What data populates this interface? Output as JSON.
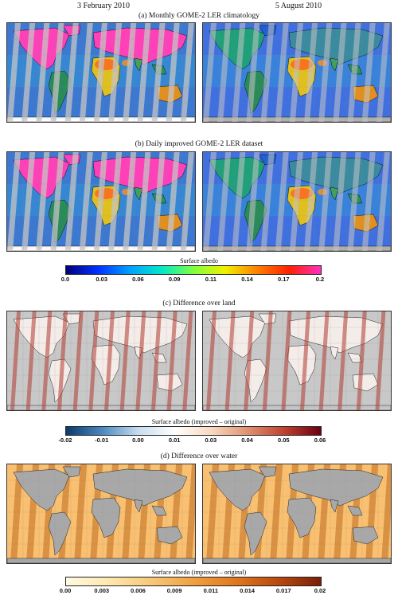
{
  "columns": {
    "left": "3 February 2010",
    "right": "5 August 2010"
  },
  "sections": {
    "a": "(a) Monthly GOME-2 LER climatology",
    "b": "(b) Daily improved GOME-2 LER dataset",
    "c": "(c) Difference over land",
    "d": "(d) Difference over water"
  },
  "colorbars": {
    "albedo": {
      "label": "Surface albedo",
      "ticks": [
        "0.0",
        "0.03",
        "0.06",
        "0.09",
        "0.11",
        "0.14",
        "0.17",
        "0.2"
      ],
      "colors": [
        "#00007a",
        "#0030ff",
        "#00a0ff",
        "#00e8c8",
        "#80ff40",
        "#f0f000",
        "#ff8000",
        "#ff2000",
        "#ff30c0"
      ]
    },
    "land_diff": {
      "label": "Surface albedo (improved – original)",
      "ticks": [
        "-0.02",
        "-0.01",
        "0.00",
        "0.01",
        "0.03",
        "0.04",
        "0.05",
        "0.06"
      ],
      "colors": [
        "#0a3a6a",
        "#4a8ac0",
        "#c8def0",
        "#ffffff",
        "#f8d8c0",
        "#e09070",
        "#c04030",
        "#6a0010"
      ]
    },
    "water_diff": {
      "label": "Surface albedo (improved – original)",
      "ticks": [
        "0.00",
        "0.003",
        "0.006",
        "0.009",
        "0.011",
        "0.014",
        "0.017",
        "0.02"
      ],
      "colors": [
        "#fffae0",
        "#fde8b0",
        "#f8c878",
        "#f0a040",
        "#e07820",
        "#b84a10",
        "#7a2008"
      ]
    }
  },
  "panel_colors": {
    "ocean_a": "#3c78d0",
    "land_a": "#2a9a6a",
    "snow": "#ff40b8",
    "desert": "#ff6020",
    "swath": "#c4c4c4",
    "land_grey": "#c8c8c8",
    "orange": "#f2a040"
  }
}
